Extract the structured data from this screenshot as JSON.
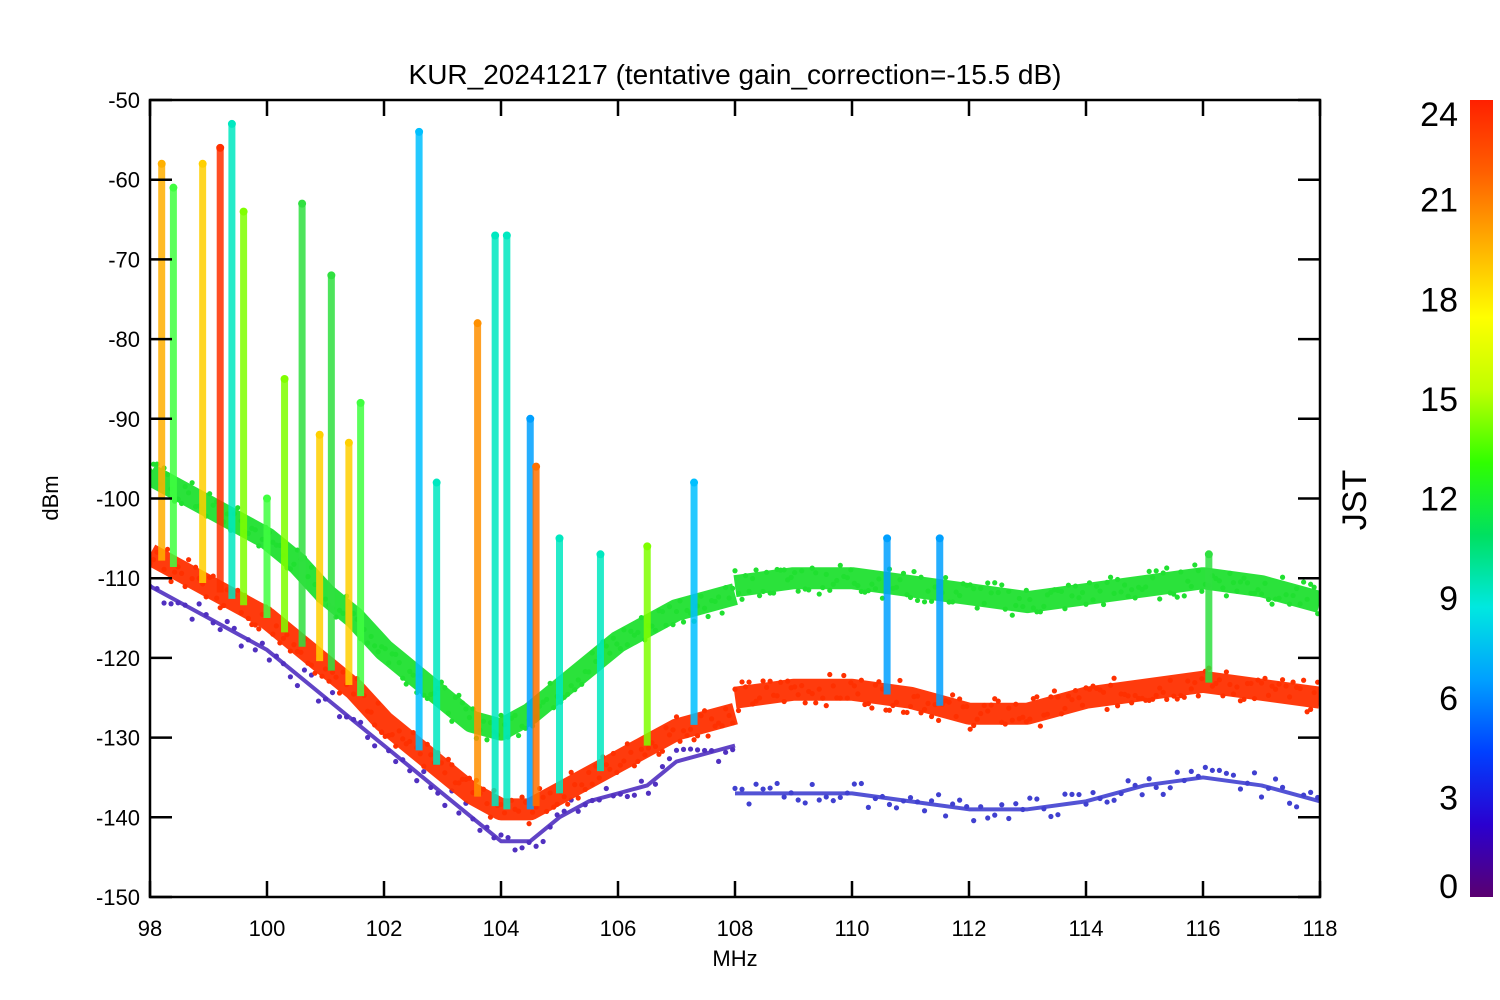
{
  "chart_data": {
    "type": "scatter",
    "title": "KUR_20241217 (tentative gain_correction=-15.5 dB)",
    "xlabel": "MHz",
    "ylabel": "dBm",
    "xlim": [
      98,
      118
    ],
    "ylim": [
      -150,
      -50
    ],
    "x_ticks": [
      "98",
      "100",
      "102",
      "104",
      "106",
      "108",
      "110",
      "112",
      "114",
      "116",
      "118"
    ],
    "y_ticks": [
      "-50",
      "-60",
      "-70",
      "-80",
      "-90",
      "-100",
      "-110",
      "-120",
      "-130",
      "-140",
      "-150"
    ],
    "grid": false,
    "colorbar": {
      "label": "JST",
      "range": [
        0,
        24
      ],
      "ticks": [
        "24",
        "21",
        "18",
        "15",
        "12",
        "9",
        "6",
        "3",
        "0"
      ],
      "colormap": "rainbow",
      "colors": [
        "#5a0070",
        "#2a00d0",
        "#0040ff",
        "#00a0ff",
        "#00e8e0",
        "#00e060",
        "#30ff00",
        "#c0ff00",
        "#ffff00",
        "#ffb000",
        "#ff6000",
        "#ff2000"
      ]
    },
    "series": [
      {
        "values_description_hidden": true,
        "color": "#5030c0",
        "x": [
          98.0,
          98.5,
          99.0,
          99.5,
          100.0,
          100.5,
          101.0,
          101.5,
          102.0,
          102.5,
          103.0,
          103.5,
          104.0,
          104.5,
          105.0,
          105.5,
          106.0,
          106.5,
          107.0,
          107.5,
          108.0
        ],
        "y": [
          -111,
          -113,
          -115,
          -117,
          -119,
          -122,
          -125,
          -128,
          -131,
          -134,
          -137,
          -140,
          -143,
          -143,
          -140,
          -138,
          -137,
          -136,
          -133,
          -132,
          -131
        ]
      },
      {
        "color": "#ff3000",
        "x": [
          98.0,
          98.5,
          99.0,
          99.5,
          100.0,
          100.5,
          101.0,
          101.5,
          102.0,
          102.5,
          103.0,
          103.5,
          104.0,
          104.5,
          105.0,
          105.5,
          106.0,
          106.5,
          107.0,
          107.5,
          108.0
        ],
        "y": [
          -107,
          -109,
          -111,
          -113,
          -115,
          -118,
          -121,
          -124,
          -128,
          -131,
          -134,
          -137,
          -139,
          -139,
          -137,
          -135,
          -133,
          -131,
          -129,
          -128,
          -127
        ]
      },
      {
        "color": "#20e030",
        "x": [
          98.0,
          98.5,
          99.0,
          99.5,
          100.0,
          100.5,
          101.0,
          101.5,
          102.0,
          102.5,
          103.0,
          103.5,
          104.0,
          104.5,
          105.0,
          105.5,
          106.0,
          106.5,
          107.0,
          107.5,
          108.0
        ],
        "y": [
          -97,
          -99,
          -101,
          -103,
          -105,
          -108,
          -112,
          -115,
          -119,
          -122,
          -125,
          -128,
          -129,
          -127,
          -124,
          -121,
          -118,
          -116,
          -114,
          -113,
          -112
        ]
      },
      {
        "color": "#ff3000",
        "x": [
          108,
          109,
          110,
          111,
          112,
          113,
          114,
          115,
          116,
          117,
          118
        ],
        "y": [
          -125,
          -124,
          -124,
          -125,
          -127,
          -127,
          -125,
          -124,
          -123,
          -124,
          -125
        ]
      },
      {
        "color": "#20e030",
        "x": [
          108,
          109,
          110,
          111,
          112,
          113,
          114,
          115,
          116,
          117,
          118
        ],
        "y": [
          -111,
          -110,
          -110,
          -111,
          -112,
          -113,
          -112,
          -111,
          -110,
          -111,
          -113
        ]
      },
      {
        "color": "#4040d0",
        "x": [
          108,
          109,
          110,
          111,
          112,
          113,
          114,
          115,
          116,
          117,
          118
        ],
        "y": [
          -137,
          -137,
          -137,
          -138,
          -139,
          -139,
          -138,
          -136,
          -135,
          -136,
          -138
        ]
      }
    ],
    "peaks": [
      {
        "x": 98.2,
        "top": -58,
        "color": "#ffb000"
      },
      {
        "x": 98.4,
        "top": -61,
        "color": "#40ff40"
      },
      {
        "x": 98.9,
        "top": -58,
        "color": "#ffd000"
      },
      {
        "x": 99.2,
        "top": -56,
        "color": "#ff3000"
      },
      {
        "x": 99.4,
        "top": -53,
        "color": "#00e8c0"
      },
      {
        "x": 99.6,
        "top": -64,
        "color": "#80ff00"
      },
      {
        "x": 100.0,
        "top": -100,
        "color": "#40ff40"
      },
      {
        "x": 100.3,
        "top": -85,
        "color": "#80ff00"
      },
      {
        "x": 100.6,
        "top": -63,
        "color": "#30e040"
      },
      {
        "x": 100.9,
        "top": -92,
        "color": "#ffd000"
      },
      {
        "x": 101.1,
        "top": -72,
        "color": "#30e040"
      },
      {
        "x": 101.4,
        "top": -93,
        "color": "#ffd000"
      },
      {
        "x": 101.6,
        "top": -88,
        "color": "#40ff40"
      },
      {
        "x": 102.6,
        "top": -54,
        "color": "#00c0ff"
      },
      {
        "x": 102.9,
        "top": -98,
        "color": "#00e8c0"
      },
      {
        "x": 103.6,
        "top": -78,
        "color": "#ff9000"
      },
      {
        "x": 103.9,
        "top": -67,
        "color": "#00e8c0"
      },
      {
        "x": 104.1,
        "top": -67,
        "color": "#00e8c0"
      },
      {
        "x": 104.5,
        "top": -90,
        "color": "#00a0ff"
      },
      {
        "x": 104.6,
        "top": -96,
        "color": "#ff7000"
      },
      {
        "x": 105.0,
        "top": -105,
        "color": "#00e8c0"
      },
      {
        "x": 105.7,
        "top": -107,
        "color": "#00e8c0"
      },
      {
        "x": 106.5,
        "top": -106,
        "color": "#80ff00"
      },
      {
        "x": 107.3,
        "top": -98,
        "color": "#00c0ff"
      },
      {
        "x": 110.6,
        "top": -105,
        "color": "#00a0ff"
      },
      {
        "x": 111.5,
        "top": -105,
        "color": "#00a0ff"
      },
      {
        "x": 116.1,
        "top": -107,
        "color": "#30e040"
      }
    ]
  }
}
